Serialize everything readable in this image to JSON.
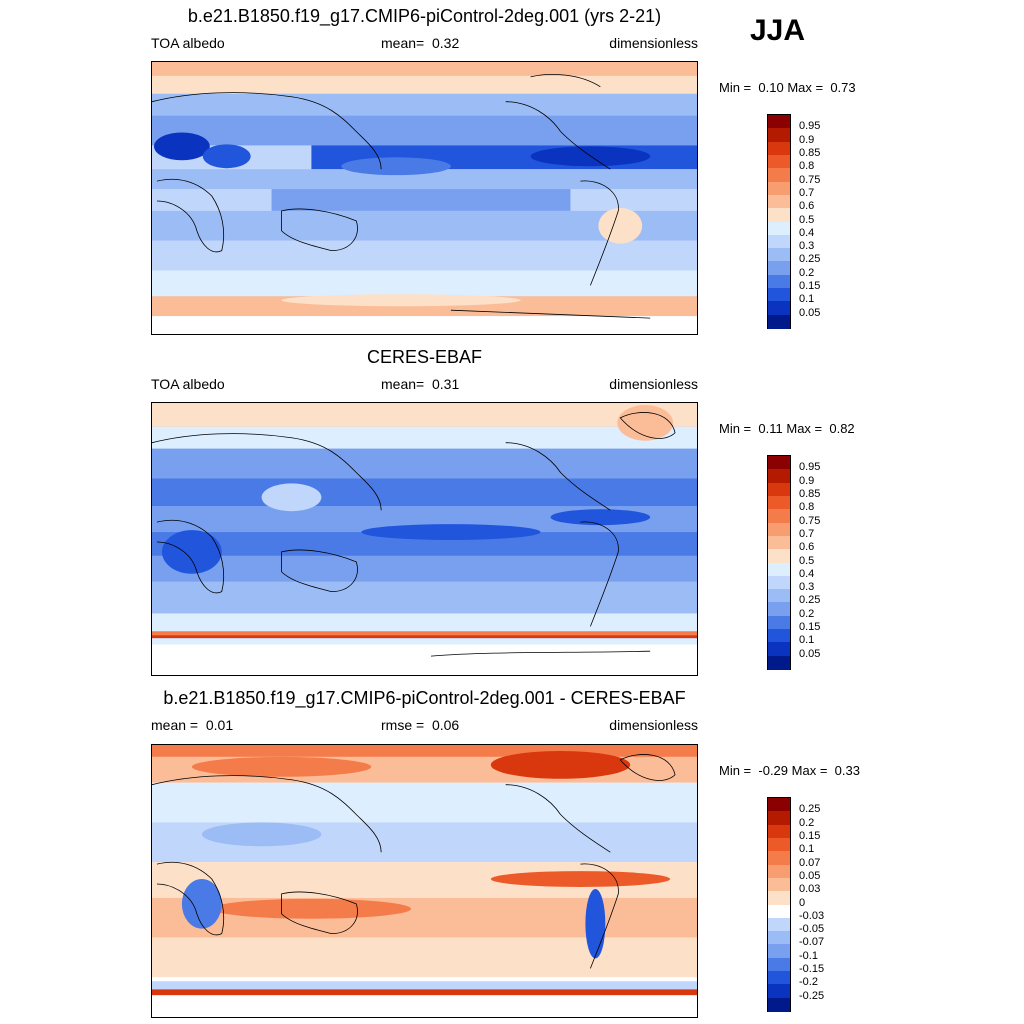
{
  "season": "JJA",
  "panels": [
    {
      "title": "b.e21.B1850.f19_g17.CMIP6-piControl-2deg.001 (yrs 2-21)",
      "left_text": "TOA albedo",
      "center_label": "mean=",
      "center_value": "0.32",
      "right_text": "dimensionless",
      "min_label": "Min =",
      "min_value": "0.10",
      "max_label": "Max =",
      "max_value": "0.73"
    },
    {
      "title": "CERES-EBAF",
      "left_text": "TOA albedo",
      "center_label": "mean=",
      "center_value": "0.31",
      "right_text": "dimensionless",
      "min_label": "Min =",
      "min_value": "0.11",
      "max_label": "Max =",
      "max_value": "0.82"
    },
    {
      "title": "b.e21.B1850.f19_g17.CMIP6-piControl-2deg.001 - CERES-EBAF",
      "left_label": "mean =",
      "left_value": "0.01",
      "center_label": "rmse =",
      "center_value": "0.06",
      "right_text": "dimensionless",
      "min_label": "Min =",
      "min_value": "-0.29",
      "max_label": "Max =",
      "max_value": "0.33"
    }
  ],
  "colorbars": {
    "albedo": {
      "labels": [
        "0.95",
        "0.9",
        "0.85",
        "0.8",
        "0.75",
        "0.7",
        "0.6",
        "0.5",
        "0.4",
        "0.3",
        "0.25",
        "0.2",
        "0.15",
        "0.1",
        "0.05"
      ],
      "colors": [
        "#8b0000",
        "#b31a00",
        "#d9380f",
        "#ec5a2a",
        "#f47c4a",
        "#f89d70",
        "#fbbd98",
        "#fde0c8",
        "#ddeeff",
        "#c0d6fa",
        "#9cbcf5",
        "#78a0ee",
        "#4a7ae6",
        "#2055dc",
        "#0a33c0",
        "#001a8c"
      ]
    },
    "diff": {
      "labels": [
        "0.25",
        "0.2",
        "0.15",
        "0.1",
        "0.07",
        "0.05",
        "0.03",
        "0",
        "-0.03",
        "-0.05",
        "-0.07",
        "-0.1",
        "-0.15",
        "-0.2",
        "-0.25"
      ],
      "colors": [
        "#8b0000",
        "#b31a00",
        "#d9380f",
        "#ec5a2a",
        "#f47c4a",
        "#f89d70",
        "#fbbd98",
        "#fde0c8",
        "#ffffff",
        "#c0d6fa",
        "#9cbcf5",
        "#78a0ee",
        "#4a7ae6",
        "#2055dc",
        "#0a33c0",
        "#001a8c"
      ]
    }
  },
  "chart_data": [
    {
      "type": "heatmap",
      "title": "b.e21.B1850.f19_g17.CMIP6-piControl-2deg.001 (yrs 2-21)",
      "variable": "TOA albedo",
      "units": "dimensionless",
      "mean": 0.32,
      "min": 0.1,
      "max": 0.73,
      "levels": [
        0.05,
        0.1,
        0.15,
        0.2,
        0.25,
        0.3,
        0.4,
        0.5,
        0.6,
        0.7,
        0.75,
        0.8,
        0.85,
        0.9,
        0.95
      ]
    },
    {
      "type": "heatmap",
      "title": "CERES-EBAF",
      "variable": "TOA albedo",
      "units": "dimensionless",
      "mean": 0.31,
      "min": 0.11,
      "max": 0.82,
      "levels": [
        0.05,
        0.1,
        0.15,
        0.2,
        0.25,
        0.3,
        0.4,
        0.5,
        0.6,
        0.7,
        0.75,
        0.8,
        0.85,
        0.9,
        0.95
      ]
    },
    {
      "type": "heatmap",
      "title": "b.e21.B1850.f19_g17.CMIP6-piControl-2deg.001 - CERES-EBAF",
      "units": "dimensionless",
      "mean": 0.01,
      "rmse": 0.06,
      "min": -0.29,
      "max": 0.33,
      "levels": [
        -0.25,
        -0.2,
        -0.15,
        -0.1,
        -0.07,
        -0.05,
        -0.03,
        0,
        0.03,
        0.05,
        0.07,
        0.1,
        0.15,
        0.2,
        0.25
      ]
    }
  ]
}
